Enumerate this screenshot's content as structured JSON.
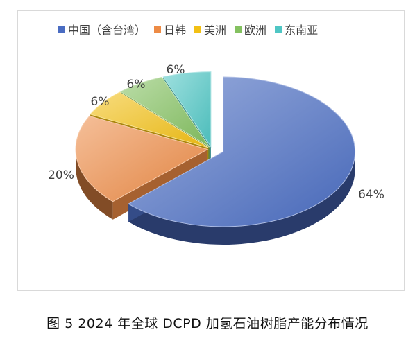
{
  "chart_data": {
    "type": "pie",
    "style": "3d-exploded",
    "categories": [
      "中国（含台湾）",
      "日韩",
      "美洲",
      "欧洲",
      "东南亚"
    ],
    "values": [
      64,
      20,
      6,
      6,
      6
    ],
    "data_labels": [
      "64%",
      "20%",
      "6%",
      "6%",
      "6%"
    ],
    "colors": [
      "#4a6cc2",
      "#ed8b45",
      "#f2c014",
      "#84c160",
      "#4fc6c4"
    ],
    "legend_position": "top",
    "title": ""
  },
  "caption": "图 5  2024 年全球 DCPD 加氢石油树脂产能分布情况"
}
